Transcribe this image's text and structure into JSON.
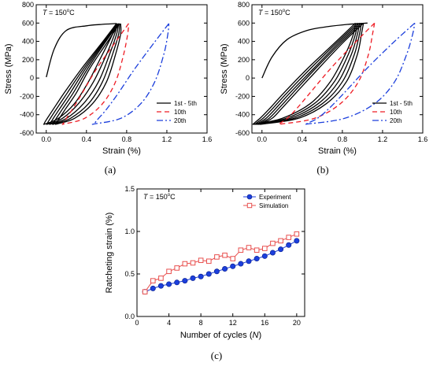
{
  "chart_data": [
    {
      "type": "line",
      "panel": "(a)",
      "annotation_T": "150",
      "xlabel": "Strain (%)",
      "ylabel": "Stress (MPa)",
      "xlim": [
        -0.1,
        1.6
      ],
      "ylim": [
        -600,
        800
      ],
      "xticks": [
        0.0,
        0.4,
        0.8,
        1.2,
        1.6
      ],
      "yticks": [
        -600,
        -400,
        -200,
        0,
        200,
        400,
        600,
        800
      ],
      "x_tick_labels": [
        "0.0",
        "0.4",
        "0.8",
        "1.2",
        "1.6"
      ],
      "y_tick_labels": [
        "-600",
        "-400",
        "-200",
        "0",
        "200",
        "400",
        "600",
        "800"
      ],
      "legend_position": "bottom-right",
      "series": [
        {
          "name": "1st - 5th",
          "color": "#000000",
          "dash": "solid",
          "kind": "monotonic",
          "x": [
            0.0,
            0.08,
            0.2,
            0.4,
            0.55,
            0.62,
            0.7
          ],
          "y": [
            10,
            320,
            520,
            570,
            585,
            590,
            595
          ]
        },
        {
          "name": "",
          "color": "#000000",
          "dash": "solid",
          "kind": "loop",
          "x": [
            0.7,
            0.55,
            0.35,
            0.18,
            0.07,
            0.01,
            -0.02,
            -0.01,
            0.12,
            0.28,
            0.42,
            0.56,
            0.66,
            0.7
          ],
          "y": [
            595,
            380,
            100,
            -160,
            -340,
            -440,
            -495,
            -500,
            -440,
            -280,
            -40,
            260,
            480,
            595
          ]
        },
        {
          "name": "",
          "color": "#000000",
          "dash": "solid",
          "kind": "loop",
          "x": [
            0.7,
            0.56,
            0.37,
            0.21,
            0.1,
            0.04,
            0.01,
            0.02,
            0.16,
            0.32,
            0.47,
            0.6,
            0.68,
            0.71
          ],
          "y": [
            595,
            380,
            100,
            -160,
            -340,
            -440,
            -495,
            -500,
            -440,
            -280,
            -40,
            260,
            480,
            595
          ]
        },
        {
          "name": "",
          "color": "#000000",
          "dash": "solid",
          "kind": "loop",
          "x": [
            0.71,
            0.57,
            0.39,
            0.24,
            0.13,
            0.07,
            0.04,
            0.05,
            0.2,
            0.37,
            0.52,
            0.63,
            0.7,
            0.72
          ],
          "y": [
            595,
            380,
            100,
            -160,
            -340,
            -440,
            -495,
            -500,
            -440,
            -280,
            -40,
            260,
            480,
            595
          ]
        },
        {
          "name": "",
          "color": "#000000",
          "dash": "solid",
          "kind": "loop",
          "x": [
            0.72,
            0.58,
            0.41,
            0.27,
            0.16,
            0.1,
            0.07,
            0.08,
            0.24,
            0.42,
            0.56,
            0.66,
            0.72,
            0.73
          ],
          "y": [
            595,
            380,
            100,
            -160,
            -340,
            -440,
            -495,
            -500,
            -440,
            -280,
            -40,
            260,
            480,
            595
          ]
        },
        {
          "name": "",
          "color": "#000000",
          "dash": "solid",
          "kind": "loop",
          "x": [
            0.73,
            0.6,
            0.43,
            0.3,
            0.19,
            0.13,
            0.1,
            0.11,
            0.28,
            0.46,
            0.6,
            0.69,
            0.74,
            0.74
          ],
          "y": [
            595,
            380,
            100,
            -160,
            -340,
            -440,
            -495,
            -500,
            -440,
            -280,
            -40,
            260,
            480,
            595
          ]
        },
        {
          "name": "10th",
          "color": "#ee1c24",
          "dash": "6,4",
          "kind": "loop",
          "x": [
            0.82,
            0.68,
            0.5,
            0.36,
            0.26,
            0.2,
            0.17,
            0.18,
            0.38,
            0.56,
            0.69,
            0.77,
            0.81,
            0.82
          ],
          "y": [
            595,
            380,
            100,
            -160,
            -340,
            -440,
            -495,
            -500,
            -440,
            -280,
            -40,
            260,
            480,
            595
          ]
        },
        {
          "name": "20th",
          "color": "#1c3fdc",
          "dash": "8,3,2,3",
          "kind": "loop",
          "x": [
            1.22,
            1.07,
            0.88,
            0.72,
            0.6,
            0.52,
            0.48,
            0.48,
            0.74,
            0.94,
            1.08,
            1.17,
            1.21,
            1.22
          ],
          "y": [
            595,
            380,
            100,
            -160,
            -340,
            -440,
            -495,
            -500,
            -440,
            -280,
            -40,
            260,
            480,
            595
          ]
        }
      ]
    },
    {
      "type": "line",
      "panel": "(b)",
      "annotation_T": "150",
      "xlabel": "Strain (%)",
      "ylabel": "Stress (MPa)",
      "xlim": [
        -0.1,
        1.6
      ],
      "ylim": [
        -600,
        800
      ],
      "xticks": [
        0.0,
        0.4,
        0.8,
        1.2,
        1.6
      ],
      "yticks": [
        -600,
        -400,
        -200,
        0,
        200,
        400,
        600,
        800
      ],
      "x_tick_labels": [
        "0.0",
        "0.4",
        "0.8",
        "1.2",
        "1.6"
      ],
      "y_tick_labels": [
        "-600",
        "-400",
        "-200",
        "0",
        "200",
        "400",
        "600",
        "800"
      ],
      "legend_position": "bottom-right",
      "series": [
        {
          "name": "1st - 5th",
          "color": "#000000",
          "dash": "solid",
          "kind": "monotonic",
          "x": [
            0.0,
            0.1,
            0.25,
            0.45,
            0.65,
            0.85,
            1.05
          ],
          "y": [
            0,
            230,
            420,
            520,
            560,
            585,
            600
          ]
        },
        {
          "name": "",
          "color": "#000000",
          "dash": "solid",
          "kind": "loop",
          "x": [
            0.93,
            0.72,
            0.45,
            0.22,
            0.07,
            -0.02,
            -0.08,
            -0.06,
            0.2,
            0.48,
            0.68,
            0.83,
            0.91,
            0.93
          ],
          "y": [
            600,
            380,
            100,
            -160,
            -340,
            -440,
            -495,
            -500,
            -440,
            -280,
            -40,
            260,
            480,
            600
          ]
        },
        {
          "name": "",
          "color": "#000000",
          "dash": "solid",
          "kind": "loop",
          "x": [
            0.95,
            0.74,
            0.48,
            0.25,
            0.1,
            0.01,
            -0.06,
            -0.04,
            0.24,
            0.52,
            0.72,
            0.86,
            0.93,
            0.95
          ],
          "y": [
            600,
            380,
            100,
            -160,
            -340,
            -440,
            -495,
            -500,
            -440,
            -280,
            -40,
            260,
            480,
            600
          ]
        },
        {
          "name": "",
          "color": "#000000",
          "dash": "solid",
          "kind": "loop",
          "x": [
            0.97,
            0.76,
            0.51,
            0.28,
            0.13,
            0.04,
            -0.04,
            -0.02,
            0.28,
            0.56,
            0.76,
            0.89,
            0.95,
            0.97
          ],
          "y": [
            600,
            380,
            100,
            -160,
            -340,
            -440,
            -495,
            -500,
            -440,
            -280,
            -40,
            260,
            480,
            600
          ]
        },
        {
          "name": "",
          "color": "#000000",
          "dash": "solid",
          "kind": "loop",
          "x": [
            0.99,
            0.78,
            0.53,
            0.31,
            0.16,
            0.07,
            -0.02,
            0.0,
            0.32,
            0.6,
            0.8,
            0.92,
            0.97,
            0.99
          ],
          "y": [
            600,
            380,
            100,
            -160,
            -340,
            -440,
            -495,
            -500,
            -440,
            -280,
            -40,
            260,
            480,
            600
          ]
        },
        {
          "name": "",
          "color": "#000000",
          "dash": "solid",
          "kind": "loop",
          "x": [
            1.01,
            0.8,
            0.56,
            0.34,
            0.19,
            0.1,
            0.0,
            0.02,
            0.36,
            0.64,
            0.84,
            0.95,
            0.99,
            1.01
          ],
          "y": [
            600,
            380,
            100,
            -160,
            -340,
            -440,
            -495,
            -500,
            -440,
            -280,
            -40,
            260,
            480,
            600
          ]
        },
        {
          "name": "10th",
          "color": "#ee1c24",
          "dash": "6,4",
          "kind": "loop",
          "x": [
            1.12,
            0.92,
            0.68,
            0.48,
            0.34,
            0.25,
            0.18,
            0.2,
            0.52,
            0.78,
            0.96,
            1.06,
            1.1,
            1.12
          ],
          "y": [
            600,
            380,
            100,
            -160,
            -340,
            -440,
            -495,
            -500,
            -440,
            -280,
            -40,
            260,
            480,
            600
          ]
        },
        {
          "name": "20th",
          "color": "#1c3fdc",
          "dash": "8,3,2,3",
          "kind": "loop",
          "x": [
            1.52,
            1.3,
            1.04,
            0.82,
            0.66,
            0.55,
            0.45,
            0.46,
            0.82,
            1.12,
            1.32,
            1.44,
            1.5,
            1.52
          ],
          "y": [
            600,
            380,
            100,
            -160,
            -340,
            -440,
            -495,
            -500,
            -440,
            -280,
            -40,
            260,
            480,
            600
          ]
        }
      ]
    },
    {
      "type": "line",
      "panel": "(c)",
      "annotation_T": "150",
      "xlabel": "Number of cycles (N)",
      "ylabel": "Ratcheting strain (%)",
      "xlim": [
        0,
        21
      ],
      "ylim": [
        0.0,
        1.5
      ],
      "xticks": [
        0,
        4,
        8,
        12,
        16,
        20
      ],
      "yticks": [
        0.0,
        0.5,
        1.0,
        1.5
      ],
      "x_tick_labels": [
        "0",
        "4",
        "8",
        "12",
        "16",
        "20"
      ],
      "y_tick_labels": [
        "0.0",
        "0.5",
        "1.0",
        "1.5"
      ],
      "legend_position": "top-right",
      "categories": [
        1,
        2,
        3,
        4,
        5,
        6,
        7,
        8,
        9,
        10,
        11,
        12,
        13,
        14,
        15,
        16,
        17,
        18,
        19,
        20
      ],
      "series": [
        {
          "name": "Experiment",
          "color": "#1c3fdc",
          "marker": "filled-circle",
          "values": [
            0.29,
            0.33,
            0.36,
            0.38,
            0.4,
            0.42,
            0.45,
            0.47,
            0.5,
            0.53,
            0.56,
            0.59,
            0.62,
            0.65,
            0.68,
            0.71,
            0.75,
            0.79,
            0.84,
            0.89
          ]
        },
        {
          "name": "Simulation",
          "color": "#e8504f",
          "marker": "open-square",
          "values": [
            0.29,
            0.42,
            0.45,
            0.53,
            0.57,
            0.62,
            0.63,
            0.66,
            0.65,
            0.7,
            0.72,
            0.68,
            0.78,
            0.81,
            0.78,
            0.8,
            0.86,
            0.89,
            0.93,
            0.97
          ]
        }
      ]
    }
  ]
}
